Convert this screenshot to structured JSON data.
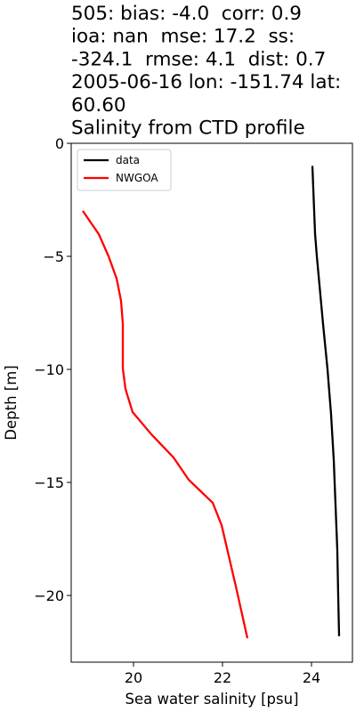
{
  "chart_data": {
    "type": "line",
    "title": [
      "505: bias: -4.0  corr: 0.9",
      "ioa: nan  mse: 17.2  ss:",
      "-324.1  rmse: 4.1  dist: 0.7",
      "2005-06-16 lon: -151.74 lat:",
      "60.60",
      "Salinity from CTD profile"
    ],
    "x_label": "Sea water salinity [psu]",
    "y_label": "Depth [m]",
    "xlim": [
      18.6,
      24.92
    ],
    "ylim": [
      -22.95,
      0
    ],
    "xticks": [
      20,
      22,
      24
    ],
    "yticks": [
      0,
      {
        "value": -5,
        "label": "−5"
      },
      {
        "value": -10,
        "label": "−10"
      },
      {
        "value": -15,
        "label": "−15"
      },
      {
        "value": -20,
        "label": "−20"
      }
    ],
    "legend": "upper left",
    "series": [
      {
        "name": "data",
        "color": "#000000",
        "x": [
          24.02,
          24.06,
          24.08,
          24.12,
          24.26,
          24.36,
          24.4,
          24.44,
          24.5,
          24.54,
          24.58,
          24.6,
          24.62
        ],
        "values": [
          -1,
          -3,
          -4,
          -5,
          -8,
          -10,
          -11,
          -12,
          -14,
          -16,
          -18,
          -20,
          -21.8
        ]
      },
      {
        "name": "NWGOA",
        "color": "#ff0000",
        "x": [
          18.86,
          19.22,
          19.44,
          19.62,
          19.72,
          19.76,
          19.76,
          19.76,
          19.82,
          19.98,
          20.4,
          20.9,
          21.24,
          21.78,
          21.98,
          22.3,
          22.56
        ],
        "values": [
          -2.99,
          -4.02,
          -5,
          -5.98,
          -6.97,
          -7.99,
          -8.98,
          -9.96,
          -10.87,
          -11.89,
          -12.87,
          -13.9,
          -14.88,
          -15.9,
          -16.89,
          -19.6,
          -21.89
        ]
      }
    ]
  }
}
